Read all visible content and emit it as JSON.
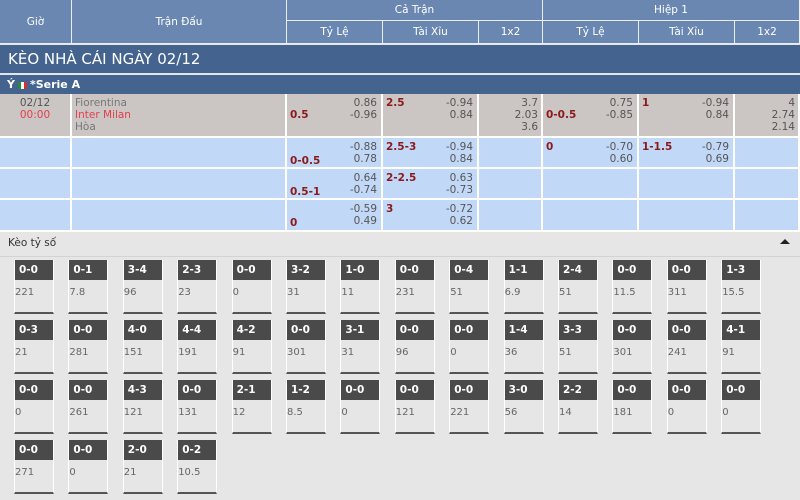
{
  "header": {
    "time": "Giờ",
    "match": "Trận Đấu",
    "full": "Cả Trận",
    "half": "Hiệp 1",
    "handicap": "Tỷ Lệ",
    "overunder": "Tài Xỉu",
    "x12": "1x2",
    "handicap2": "Tỷ Lệ",
    "overunder2": "Tài Xỉu",
    "x12b": "1x2"
  },
  "title": "KÈO NHÀ CÁI NGÀY 02/12",
  "league": {
    "country": "Ý",
    "name": "*Serie A"
  },
  "match": {
    "date": "02/12",
    "time": "00:00",
    "home": "Fiorentina",
    "away": "Inter Milan",
    "draw": "Hòa"
  },
  "colors": {
    "header": "#6a87b1",
    "title": "#44648f",
    "main_row": "#cbc6c4",
    "alt_row": "#c2d8f7",
    "away_team": "#e2404a",
    "line": "#8b1a1a"
  },
  "odds_rows": [
    {
      "hdp": "0.5",
      "hdp_a": "0.86",
      "hdp_b": "-0.96",
      "ou": "2.5",
      "ou_a": "-0.94",
      "ou_b": "0.84",
      "x1": "3.7",
      "x2": "2.03",
      "x3": "3.6",
      "h_hdp": "0-0.5",
      "h_hdp_a": "0.75",
      "h_hdp_b": "-0.85",
      "h_ou": "1",
      "h_ou_a": "-0.94",
      "h_ou_b": "0.84",
      "h1": "4",
      "h2": "2.74",
      "h3": "2.14"
    },
    {
      "hdp": "0-0.5",
      "hdp_a": "-0.88",
      "hdp_b": "0.78",
      "ou": "2.5-3",
      "ou_a": "-0.94",
      "ou_b": "0.84",
      "h_hdp": "0",
      "h_hdp_a": "-0.70",
      "h_hdp_b": "0.60",
      "h_ou": "1-1.5",
      "h_ou_a": "-0.79",
      "h_ou_b": "0.69"
    },
    {
      "hdp": "0.5-1",
      "hdp_a": "0.64",
      "hdp_b": "-0.74",
      "ou": "2-2.5",
      "ou_a": "0.63",
      "ou_b": "-0.73"
    },
    {
      "hdp": "0",
      "hdp_a": "-0.59",
      "hdp_b": "0.49",
      "ou": "3",
      "ou_a": "-0.72",
      "ou_b": "0.62"
    }
  ],
  "scores": {
    "title": "Kèo tỷ số",
    "items": [
      {
        "s": "0-0",
        "v": "221"
      },
      {
        "s": "0-1",
        "v": "7.8"
      },
      {
        "s": "3-4",
        "v": "96"
      },
      {
        "s": "2-3",
        "v": "23"
      },
      {
        "s": "0-0",
        "v": "0"
      },
      {
        "s": "3-2",
        "v": "31"
      },
      {
        "s": "1-0",
        "v": "11"
      },
      {
        "s": "0-0",
        "v": "231"
      },
      {
        "s": "0-4",
        "v": "51"
      },
      {
        "s": "1-1",
        "v": "6.9"
      },
      {
        "s": "2-4",
        "v": "51"
      },
      {
        "s": "0-0",
        "v": "11.5"
      },
      {
        "s": "0-0",
        "v": "311"
      },
      {
        "s": "1-3",
        "v": "15.5"
      },
      {
        "s": "0-3",
        "v": "21"
      },
      {
        "s": "0-0",
        "v": "281"
      },
      {
        "s": "4-0",
        "v": "151"
      },
      {
        "s": "4-4",
        "v": "191"
      },
      {
        "s": "4-2",
        "v": "91"
      },
      {
        "s": "0-0",
        "v": "301"
      },
      {
        "s": "3-1",
        "v": "31"
      },
      {
        "s": "0-0",
        "v": "96"
      },
      {
        "s": "0-0",
        "v": "0"
      },
      {
        "s": "1-4",
        "v": "36"
      },
      {
        "s": "3-3",
        "v": "51"
      },
      {
        "s": "0-0",
        "v": "301"
      },
      {
        "s": "0-0",
        "v": "241"
      },
      {
        "s": "4-1",
        "v": "91"
      },
      {
        "s": "0-0",
        "v": "0"
      },
      {
        "s": "0-0",
        "v": "261"
      },
      {
        "s": "4-3",
        "v": "121"
      },
      {
        "s": "0-0",
        "v": "131"
      },
      {
        "s": "2-1",
        "v": "12"
      },
      {
        "s": "1-2",
        "v": "8.5"
      },
      {
        "s": "0-0",
        "v": "0"
      },
      {
        "s": "0-0",
        "v": "121"
      },
      {
        "s": "0-0",
        "v": "221"
      },
      {
        "s": "3-0",
        "v": "56"
      },
      {
        "s": "2-2",
        "v": "14"
      },
      {
        "s": "0-0",
        "v": "181"
      },
      {
        "s": "0-0",
        "v": "0"
      },
      {
        "s": "0-0",
        "v": "0"
      },
      {
        "s": "0-0",
        "v": "271"
      },
      {
        "s": "0-0",
        "v": "0"
      },
      {
        "s": "2-0",
        "v": "21"
      },
      {
        "s": "0-2",
        "v": "10.5"
      }
    ]
  }
}
